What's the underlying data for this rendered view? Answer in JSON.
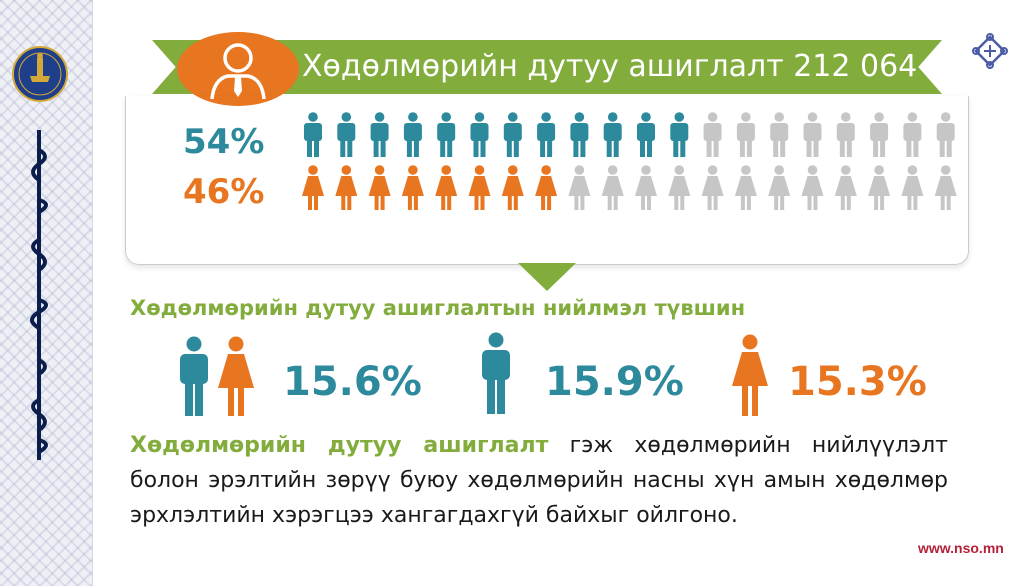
{
  "banner": {
    "title": "Хөдөлмөрийн дутуу ашиглалт 212 064",
    "color": "#82ac3c",
    "icon": "person-icon",
    "icon_color": "#e8751f"
  },
  "logo": {
    "text": "ҮНДЭСНИЙ СТАТИСТИК"
  },
  "distribution": {
    "total_icons": 20,
    "male": {
      "percent_label": "54%",
      "filled_icons": 12,
      "color": "#2d8a9c"
    },
    "female": {
      "percent_label": "46%",
      "filled_icons": 8,
      "color": "#e8751f"
    },
    "empty_color": "#c6c6c6"
  },
  "rate": {
    "title": "Хөдөлмөрийн дутуу ашиглалтын нийлмэл түвшин",
    "total": "15.6%",
    "male": "15.9%",
    "female": "15.3%"
  },
  "definition": {
    "term": "Хөдөлмөрийн дутуу ашиглалт",
    "text": " гэж хөдөлмөрийн нийлүүлэлт болон эрэлтийн зөрүү буюу хөдөлмөрийн насны хүн амын хөдөлмөр эрхлэлтийн хэрэгцээ хангагдахгүй байхыг ойлгоно."
  },
  "footer": {
    "website": "www.nso.mn"
  }
}
